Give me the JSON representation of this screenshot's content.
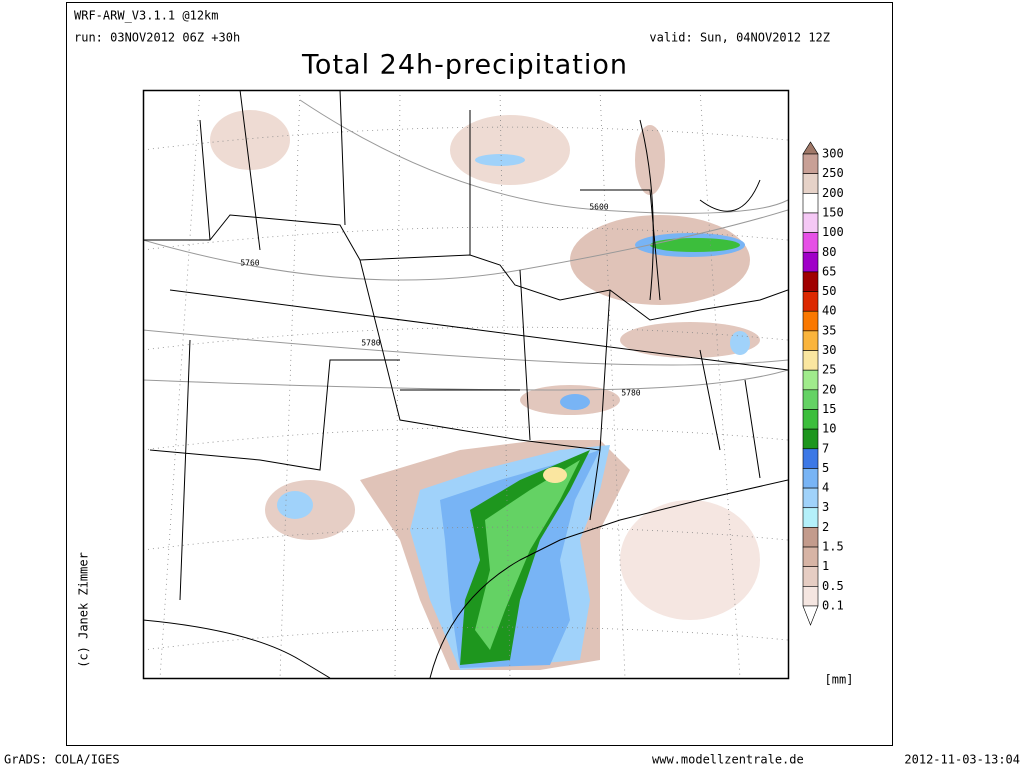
{
  "header": {
    "model": "WRF-ARW_V3.1.1 @12km",
    "run": "run: 03NOV2012 06Z +30h",
    "valid": "valid: Sun, 04NOV2012 12Z",
    "title": "Total 24h-precipitation"
  },
  "map": {
    "contour_labels": [
      "5600",
      "5760",
      "5780",
      "5780"
    ]
  },
  "colorbar": {
    "labels": [
      "300",
      "250",
      "200",
      "150",
      "100",
      "80",
      "65",
      "50",
      "40",
      "35",
      "30",
      "25",
      "20",
      "15",
      "10",
      "7",
      "5",
      "4",
      "3",
      "2",
      "1.5",
      "1",
      "0.5",
      "0.1"
    ],
    "colors": [
      "#a07868",
      "#c8a096",
      "#e6d2c8",
      "#ffffff",
      "#f5c8f5",
      "#e650e6",
      "#a000c8",
      "#a00000",
      "#dc2800",
      "#fa7800",
      "#fab43c",
      "#fae6a0",
      "#a0eb8c",
      "#64d264",
      "#3cbe3c",
      "#1e961e",
      "#3c78e6",
      "#78b4f5",
      "#a0d2fa",
      "#b4f0fa",
      "#c39b8c",
      "#d7b4a5",
      "#e6cdc3",
      "#f5e6e1",
      "#ffffff"
    ],
    "unit": "[mm]"
  },
  "credit": "(c) Janek Zimmer",
  "footer": {
    "software": "GrADS: COLA/IGES",
    "website": "www.modellzentrale.de",
    "timestamp": "2012-11-03-13:04"
  }
}
